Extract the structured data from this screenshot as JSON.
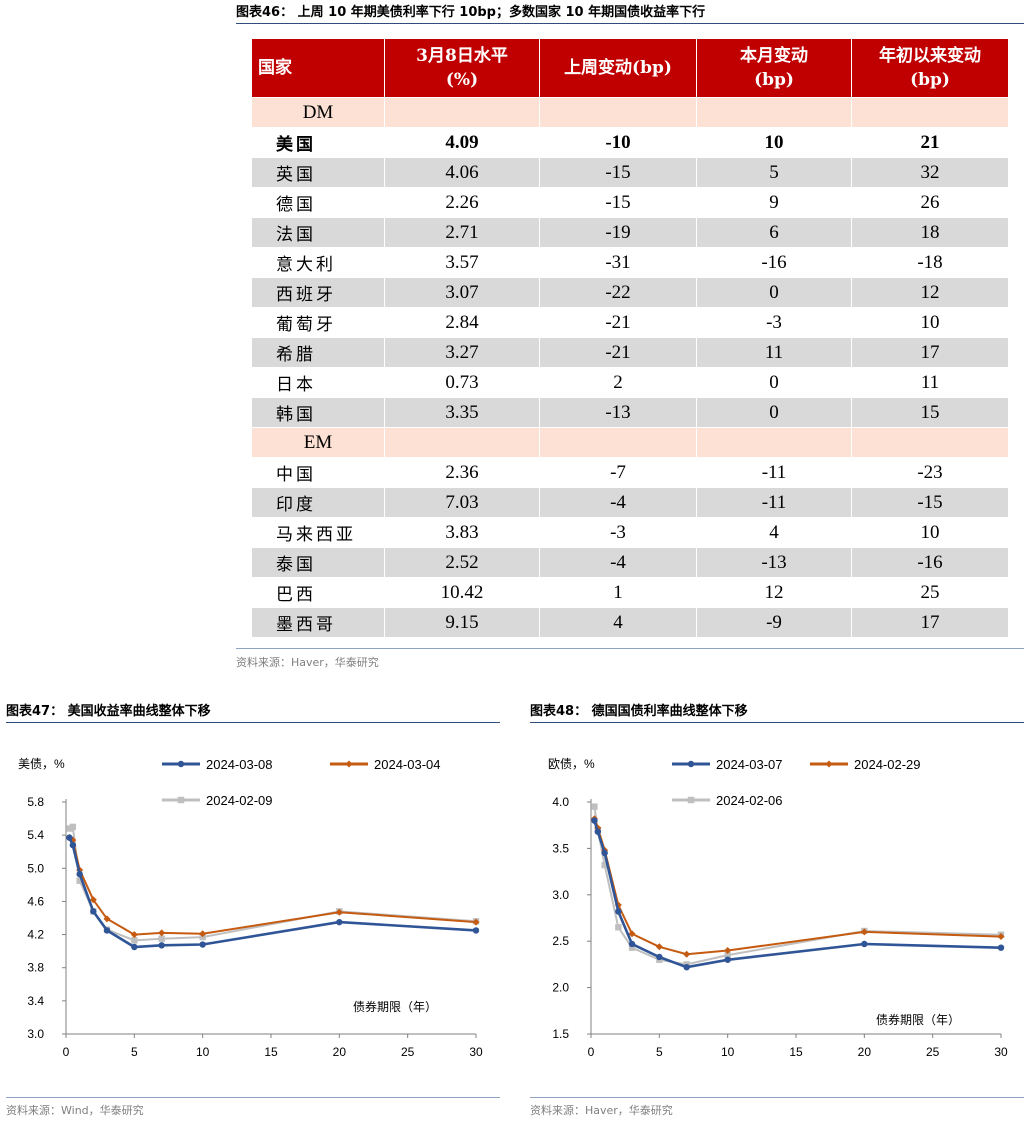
{
  "table_title": "图表46：  上周 10 年期美债利率下行 10bp；多数国家 10 年期国债收益率下行",
  "table": {
    "headers": [
      "国家",
      "3月8日水平\n(%)",
      "上周变动(bp)",
      "本月变动\n(bp)",
      "年初以来变动\n(bp)"
    ],
    "rows": [
      {
        "type": "group",
        "cells": [
          "DM",
          "",
          "",
          "",
          ""
        ]
      },
      {
        "type": "row",
        "bold": true,
        "shade": "white",
        "cells": [
          "美国",
          "4.09",
          "-10",
          "10",
          "21"
        ]
      },
      {
        "type": "row",
        "bold": false,
        "shade": "grey",
        "cells": [
          "英国",
          "4.06",
          "-15",
          "5",
          "32"
        ]
      },
      {
        "type": "row",
        "bold": false,
        "shade": "white",
        "cells": [
          "德国",
          "2.26",
          "-15",
          "9",
          "26"
        ]
      },
      {
        "type": "row",
        "bold": false,
        "shade": "grey",
        "cells": [
          "法国",
          "2.71",
          "-19",
          "6",
          "18"
        ]
      },
      {
        "type": "row",
        "bold": false,
        "shade": "white",
        "cells": [
          "意大利",
          "3.57",
          "-31",
          "-16",
          "-18"
        ]
      },
      {
        "type": "row",
        "bold": false,
        "shade": "grey",
        "cells": [
          "西班牙",
          "3.07",
          "-22",
          "0",
          "12"
        ]
      },
      {
        "type": "row",
        "bold": false,
        "shade": "white",
        "cells": [
          "葡萄牙",
          "2.84",
          "-21",
          "-3",
          "10"
        ]
      },
      {
        "type": "row",
        "bold": false,
        "shade": "grey",
        "cells": [
          "希腊",
          "3.27",
          "-21",
          "11",
          "17"
        ]
      },
      {
        "type": "row",
        "bold": false,
        "shade": "white",
        "cells": [
          "日本",
          "0.73",
          "2",
          "0",
          "11"
        ]
      },
      {
        "type": "row",
        "bold": false,
        "shade": "grey",
        "cells": [
          "韩国",
          "3.35",
          "-13",
          "0",
          "15"
        ]
      },
      {
        "type": "group",
        "cells": [
          "EM",
          "",
          "",
          "",
          ""
        ]
      },
      {
        "type": "row",
        "bold": false,
        "shade": "white",
        "cells": [
          "中国",
          "2.36",
          "-7",
          "-11",
          "-23"
        ]
      },
      {
        "type": "row",
        "bold": false,
        "shade": "grey",
        "cells": [
          "印度",
          "7.03",
          "-4",
          "-11",
          "-15"
        ]
      },
      {
        "type": "row",
        "bold": false,
        "shade": "white",
        "cells": [
          "马来西亚",
          "3.83",
          "-3",
          "4",
          "10"
        ]
      },
      {
        "type": "row",
        "bold": false,
        "shade": "grey",
        "cells": [
          "泰国",
          "2.52",
          "-4",
          "-13",
          "-16"
        ]
      },
      {
        "type": "row",
        "bold": false,
        "shade": "white",
        "cells": [
          "巴西",
          "10.42",
          "1",
          "12",
          "25"
        ]
      },
      {
        "type": "row",
        "bold": false,
        "shade": "grey",
        "cells": [
          "墨西哥",
          "9.15",
          "4",
          "-9",
          "17"
        ]
      }
    ],
    "colors": {
      "header_bg": "#c00000",
      "group_bg": "#fde1d4",
      "grey_row": "#d9d9d9"
    }
  },
  "table_source": "资料来源：Haver，华泰研究",
  "chart_data": [
    {
      "type": "line",
      "title": "图表47：  美国收益率曲线整体下移",
      "ylabel": "美债，%",
      "xlabel": "债券期限（年）",
      "xlim": [
        0,
        30
      ],
      "ylim": [
        3.0,
        5.8
      ],
      "xticks": [
        0,
        5,
        10,
        15,
        20,
        25,
        30
      ],
      "yticks": [
        "3.0",
        "3.4",
        "3.8",
        "4.2",
        "4.6",
        "5.0",
        "5.4",
        "5.8"
      ],
      "grid": false,
      "legend_position": "top",
      "series": [
        {
          "name": "2024-03-08",
          "color": "#2f5597",
          "marker": "circle",
          "x": [
            0.25,
            0.5,
            1,
            2,
            3,
            5,
            7,
            10,
            20,
            30
          ],
          "y": [
            5.37,
            5.28,
            4.93,
            4.48,
            4.25,
            4.05,
            4.07,
            4.08,
            4.35,
            4.25
          ]
        },
        {
          "name": "2024-03-04",
          "color": "#c55a11",
          "marker": "diamond",
          "x": [
            0.25,
            0.5,
            1,
            2,
            3,
            5,
            7,
            10,
            20,
            30
          ],
          "y": [
            5.37,
            5.34,
            4.98,
            4.62,
            4.39,
            4.2,
            4.22,
            4.21,
            4.47,
            4.35
          ]
        },
        {
          "name": "2024-02-09",
          "color": "#bfbfbf",
          "marker": "square",
          "x": [
            0.25,
            0.5,
            1,
            2,
            3,
            5,
            7,
            10,
            20,
            30
          ],
          "y": [
            5.48,
            5.5,
            4.85,
            4.48,
            4.26,
            4.13,
            4.15,
            4.17,
            4.48,
            4.36
          ]
        }
      ],
      "source": "资料来源：Wind，华泰研究"
    },
    {
      "type": "line",
      "title": "图表48：  德国国债利率曲线整体下移",
      "ylabel": "欧债，%",
      "xlabel": "债券期限（年）",
      "xlim": [
        0,
        30
      ],
      "ylim": [
        1.5,
        4.0
      ],
      "xticks": [
        0,
        5,
        10,
        15,
        20,
        25,
        30
      ],
      "yticks": [
        "1.5",
        "2.0",
        "2.5",
        "3.0",
        "3.5",
        "4.0"
      ],
      "grid": false,
      "legend_position": "top",
      "series": [
        {
          "name": "2024-03-07",
          "color": "#2f5597",
          "marker": "circle",
          "x": [
            0.25,
            0.5,
            1,
            2,
            3,
            5,
            7,
            10,
            20,
            30
          ],
          "y": [
            3.8,
            3.68,
            3.45,
            2.82,
            2.47,
            2.33,
            2.22,
            2.3,
            2.47,
            2.43
          ]
        },
        {
          "name": "2024-02-29",
          "color": "#c55a11",
          "marker": "diamond",
          "x": [
            0.25,
            0.5,
            1,
            2,
            3,
            5,
            7,
            10,
            20,
            30
          ],
          "y": [
            3.82,
            3.72,
            3.48,
            2.89,
            2.58,
            2.44,
            2.36,
            2.4,
            2.6,
            2.55
          ]
        },
        {
          "name": "2024-02-06",
          "color": "#bfbfbf",
          "marker": "square",
          "x": [
            0.25,
            0.5,
            1,
            2,
            3,
            5,
            7,
            10,
            20,
            30
          ],
          "y": [
            3.95,
            3.7,
            3.32,
            2.65,
            2.43,
            2.3,
            2.25,
            2.35,
            2.61,
            2.57
          ]
        }
      ],
      "source": "资料来源：Haver，华泰研究"
    }
  ]
}
